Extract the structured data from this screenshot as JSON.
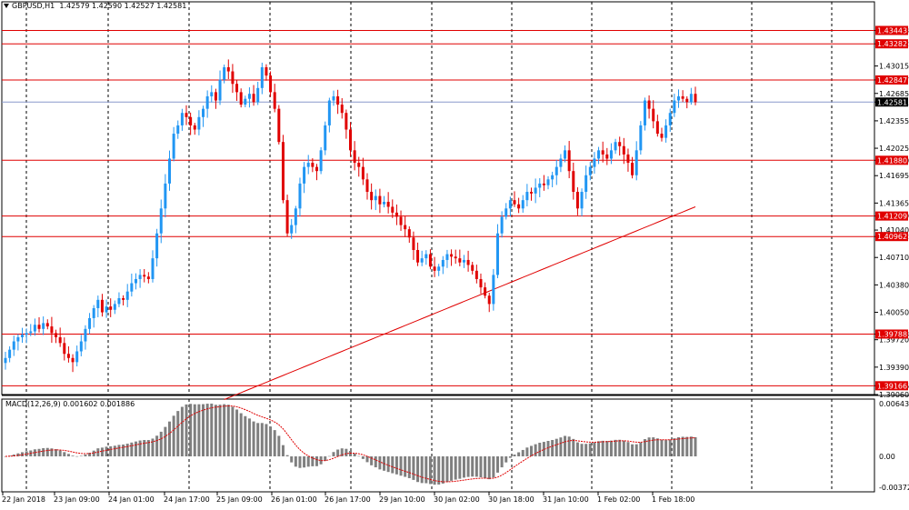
{
  "header": {
    "symbol": "GBPUSD,H1",
    "ohlc": "1.42579 1.42590 1.42527 1.42581"
  },
  "macd": {
    "label": "MACD(12,26,9) 0.001602 0.001886",
    "ticks": [
      "0.00643",
      "0.00",
      "-0.003724"
    ]
  },
  "price_axis": {
    "ticks": [
      "1.43443",
      "1.43282",
      "1.43015",
      "1.42847",
      "1.42685",
      "1.42581",
      "1.42355",
      "1.42025",
      "1.41880",
      "1.41695",
      "1.41365",
      "1.41209",
      "1.41040",
      "1.40962",
      "1.40710",
      "1.40380",
      "1.40050",
      "1.39788",
      "1.39720",
      "1.39390",
      "1.39166",
      "1.39060"
    ]
  },
  "time_axis": {
    "labels": [
      "22 Jan 2018",
      "23 Jan 09:00",
      "24 Jan 01:00",
      "24 Jan 17:00",
      "25 Jan 09:00",
      "26 Jan 01:00",
      "26 Jan 17:00",
      "29 Jan 10:00",
      "30 Jan 02:00",
      "30 Jan 18:00",
      "31 Jan 10:00",
      "1 Feb 02:00",
      "1 Feb 18:00"
    ]
  },
  "level_lines": [
    {
      "price": 1.43443,
      "label": "1.43443"
    },
    {
      "price": 1.43282,
      "label": "1.43282"
    },
    {
      "price": 1.42847,
      "label": "1.42847"
    },
    {
      "price": 1.4188,
      "label": "1.41880"
    },
    {
      "price": 1.41209,
      "label": "1.41209"
    },
    {
      "price": 1.40962,
      "label": "1.40962"
    },
    {
      "price": 1.39788,
      "label": "1.39788"
    },
    {
      "price": 1.39166,
      "label": "1.39166"
    }
  ],
  "current_price": {
    "price": 1.42581,
    "label": "1.42581"
  },
  "colors": {
    "bull": "#2196f3",
    "bear": "#e00000",
    "level": "#e00000",
    "current": "#8899cc",
    "ma": "#e00000",
    "macd_bar": "#7f7f7f",
    "signal": "#e00000",
    "grid": "#000000"
  },
  "chart_data": {
    "type": "candlestick",
    "symbol": "GBPUSD",
    "timeframe": "H1",
    "y_range": [
      1.3906,
      1.437
    ],
    "closes": [
      1.395,
      1.396,
      1.397,
      1.3975,
      1.3978,
      1.398,
      1.3982,
      1.399,
      1.3985,
      1.3992,
      1.3988,
      1.398,
      1.3975,
      1.3968,
      1.3955,
      1.395,
      1.3945,
      1.3958,
      1.397,
      1.3985,
      1.3998,
      1.401,
      1.402,
      1.4005,
      1.4012,
      1.4008,
      1.4015,
      1.4022,
      1.402,
      1.403,
      1.404,
      1.4045,
      1.405,
      1.4048,
      1.4045,
      1.407,
      1.41,
      1.413,
      1.416,
      1.419,
      1.422,
      1.423,
      1.4245,
      1.424,
      1.423,
      1.4225,
      1.424,
      1.425,
      1.4265,
      1.427,
      1.426,
      1.4285,
      1.43,
      1.4295,
      1.428,
      1.427,
      1.4255,
      1.4262,
      1.4268,
      1.4258,
      1.4275,
      1.43,
      1.429,
      1.427,
      1.425,
      1.421,
      1.414,
      1.41,
      1.411,
      1.413,
      1.416,
      1.418,
      1.4185,
      1.418,
      1.4175,
      1.42,
      1.423,
      1.426,
      1.4265,
      1.4255,
      1.4245,
      1.4225,
      1.42,
      1.4185,
      1.418,
      1.4165,
      1.415,
      1.414,
      1.4145,
      1.4135,
      1.4138,
      1.4132,
      1.4125,
      1.412,
      1.411,
      1.4105,
      1.4095,
      1.408,
      1.4065,
      1.407,
      1.4075,
      1.406,
      1.4055,
      1.406,
      1.4068,
      1.4075,
      1.4072,
      1.407,
      1.4065,
      1.4068,
      1.4062,
      1.4055,
      1.4045,
      1.4035,
      1.4025,
      1.4015,
      1.405,
      1.41,
      1.412,
      1.413,
      1.414,
      1.4135,
      1.413,
      1.414,
      1.415,
      1.4148,
      1.4155,
      1.416,
      1.4158,
      1.4165,
      1.417,
      1.418,
      1.419,
      1.42,
      1.4175,
      1.415,
      1.413,
      1.415,
      1.417,
      1.418,
      1.419,
      1.42,
      1.4195,
      1.419,
      1.42,
      1.421,
      1.4205,
      1.4195,
      1.4185,
      1.417,
      1.42,
      1.423,
      1.426,
      1.425,
      1.4235,
      1.422,
      1.4215,
      1.423,
      1.4245,
      1.426,
      1.4265,
      1.4262,
      1.4258,
      1.4268,
      1.4258
    ]
  }
}
